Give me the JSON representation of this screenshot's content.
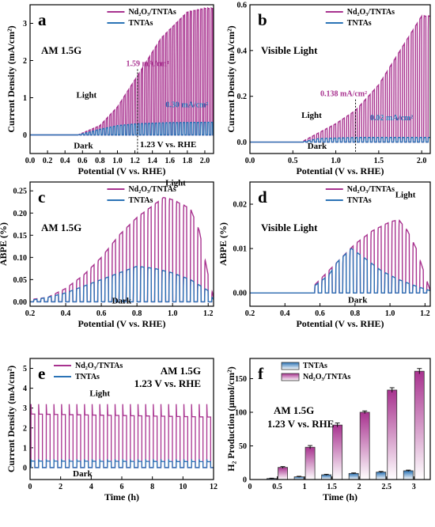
{
  "colors": {
    "nd2o3": "#A8328F",
    "tntas": "#2B73B6",
    "axis": "#000000"
  },
  "chart_data": [
    {
      "panel": "a",
      "type": "line",
      "xlabel": "Potential (V vs. RHE)",
      "ylabel": "Current Density (mA/cm²)",
      "xlim": [
        0,
        2.1
      ],
      "ylim": [
        -0.5,
        3.5
      ],
      "xticks": [
        "0.0",
        "0.2",
        "0.4",
        "0.6",
        "0.8",
        "1.0",
        "1.2",
        "1.4",
        "1.6",
        "1.8",
        "2.0"
      ],
      "yticks": [
        "0",
        "1",
        "2",
        "3"
      ],
      "condition": "AM 1.5G",
      "legend": [
        "Nd₂O₃/TNTAs",
        "TNTAs"
      ],
      "chop": {
        "start": 0.05,
        "period": 0.04,
        "onset": 0.55,
        "exp": 2.0
      },
      "series": [
        {
          "name": "Nd₂O₃/TNTAs",
          "color": "nd2o3",
          "envelope": [
            [
              0,
              0
            ],
            [
              0.55,
              0
            ],
            [
              0.8,
              0.25
            ],
            [
              1.0,
              0.75
            ],
            [
              1.23,
              1.59
            ],
            [
              1.5,
              2.6
            ],
            [
              1.8,
              3.3
            ],
            [
              2.0,
              3.4
            ],
            [
              2.1,
              3.4
            ]
          ]
        },
        {
          "name": "TNTAs",
          "color": "tntas",
          "envelope": [
            [
              0,
              0
            ],
            [
              0.55,
              0
            ],
            [
              0.8,
              0.15
            ],
            [
              1.0,
              0.25
            ],
            [
              1.23,
              0.3
            ],
            [
              1.6,
              0.33
            ],
            [
              2.1,
              0.34
            ]
          ]
        }
      ],
      "vline": {
        "x": 1.23,
        "label": "1.23 V vs. RHE"
      },
      "annotations": [
        {
          "text": "1.59 mA/cm²",
          "color": "nd2o3",
          "x": 1.1,
          "y": 1.85
        },
        {
          "text": "0.30 mA/cm²",
          "color": "tntas",
          "x": 1.55,
          "y": 0.75
        },
        {
          "text": "Light",
          "color": "axis",
          "x": 0.53,
          "y": 1.0
        },
        {
          "text": "Dark",
          "color": "axis",
          "x": 0.5,
          "y": -0.36
        }
      ]
    },
    {
      "panel": "b",
      "type": "line",
      "xlabel": "Potential (V vs. RHE)",
      "ylabel": "Current Density (mA/cm²)",
      "xlim": [
        0,
        2.1
      ],
      "ylim": [
        -0.05,
        0.6
      ],
      "xticks": [
        "0.0",
        "0.5",
        "1.0",
        "1.5",
        "2.0"
      ],
      "yticks": [
        "0.0",
        "0.2",
        "0.4",
        "0.6"
      ],
      "condition": "Visible Light",
      "legend": [
        "Nd₂O₃/TNTAs",
        "TNTAs"
      ],
      "chop": {
        "start": 0.55,
        "period": 0.05,
        "onset": 0.6,
        "exp": 2.0
      },
      "series": [
        {
          "name": "Nd₂O₃/TNTAs",
          "color": "nd2o3",
          "envelope": [
            [
              0,
              0
            ],
            [
              0.6,
              0
            ],
            [
              0.8,
              0.04
            ],
            [
              1.0,
              0.08
            ],
            [
              1.23,
              0.138
            ],
            [
              1.5,
              0.25
            ],
            [
              1.8,
              0.43
            ],
            [
              2.0,
              0.55
            ],
            [
              2.1,
              0.55
            ]
          ]
        },
        {
          "name": "TNTAs",
          "color": "tntas",
          "envelope": [
            [
              0,
              0
            ],
            [
              0.6,
              0
            ],
            [
              0.8,
              0.015
            ],
            [
              1.23,
              0.02
            ],
            [
              2.1,
              0.02
            ]
          ]
        }
      ],
      "vline": {
        "x": 1.23,
        "label": ""
      },
      "annotations": [
        {
          "text": "0.138 mA/cm²",
          "color": "nd2o3",
          "x": 0.82,
          "y": 0.2
        },
        {
          "text": "0.02 mA/cm²",
          "color": "tntas",
          "x": 1.4,
          "y": 0.095
        },
        {
          "text": "Light",
          "color": "axis",
          "x": 0.6,
          "y": 0.105
        },
        {
          "text": "Dark",
          "color": "axis",
          "x": 0.67,
          "y": -0.03
        }
      ]
    },
    {
      "panel": "c",
      "type": "line",
      "xlabel": "Potential (V vs. RHE)",
      "ylabel": "ABPE (%)",
      "xlim": [
        0.2,
        1.23
      ],
      "ylim": [
        -0.01,
        0.27
      ],
      "xticks": [
        "0.2",
        "0.4",
        "0.6",
        "0.8",
        "1.0",
        "1.2"
      ],
      "yticks": [
        "0.00",
        "0.05",
        "0.10",
        "0.15",
        "0.20",
        "0.25"
      ],
      "condition": "AM 1.5G",
      "legend": [
        "Nd₂O₃/TNTAs",
        "TNTAs"
      ],
      "chop": {
        "start": 0.2,
        "period": 0.04,
        "onset": 0.2,
        "exp": 1.5
      },
      "series": [
        {
          "name": "Nd₂O₃/TNTAs",
          "color": "nd2o3",
          "envelope": [
            [
              0.2,
              0.005
            ],
            [
              0.3,
              0.01
            ],
            [
              0.4,
              0.03
            ],
            [
              0.5,
              0.06
            ],
            [
              0.6,
              0.1
            ],
            [
              0.7,
              0.15
            ],
            [
              0.8,
              0.19
            ],
            [
              0.9,
              0.22
            ],
            [
              0.95,
              0.235
            ],
            [
              1.0,
              0.23
            ],
            [
              1.1,
              0.21
            ],
            [
              1.15,
              0.16
            ],
            [
              1.2,
              0.06
            ],
            [
              1.23,
              0.01
            ]
          ]
        },
        {
          "name": "TNTAs",
          "color": "tntas",
          "envelope": [
            [
              0.2,
              0.003
            ],
            [
              0.3,
              0.01
            ],
            [
              0.4,
              0.02
            ],
            [
              0.5,
              0.035
            ],
            [
              0.6,
              0.05
            ],
            [
              0.7,
              0.065
            ],
            [
              0.8,
              0.08
            ],
            [
              0.9,
              0.075
            ],
            [
              1.0,
              0.065
            ],
            [
              1.1,
              0.05
            ],
            [
              1.2,
              0.025
            ],
            [
              1.23,
              0.005
            ]
          ]
        }
      ],
      "annotations": [
        {
          "text": "Light",
          "color": "axis",
          "x": 0.96,
          "y": 0.262
        },
        {
          "text": "Dark",
          "color": "axis",
          "x": 0.66,
          "y": -0.004
        }
      ]
    },
    {
      "panel": "d",
      "type": "line",
      "xlabel": "Potential (V vs. RHE)",
      "ylabel": "ABPE (%)",
      "xlim": [
        0.2,
        1.23
      ],
      "ylim": [
        -0.003,
        0.025
      ],
      "xticks": [
        "0.2",
        "0.4",
        "0.6",
        "0.8",
        "1.0",
        "1.2"
      ],
      "yticks": [
        "0.00",
        "0.01",
        "0.02"
      ],
      "condition": "Visible Light",
      "legend": [
        "Nd₂O₃/TNTAs",
        "TNTAs"
      ],
      "chop": {
        "start": 0.55,
        "period": 0.04,
        "onset": 0.55,
        "exp": 1.5
      },
      "series": [
        {
          "name": "Nd₂O₃/TNTAs",
          "color": "nd2o3",
          "envelope": [
            [
              0.55,
              0.001
            ],
            [
              0.6,
              0.003
            ],
            [
              0.7,
              0.007
            ],
            [
              0.8,
              0.011
            ],
            [
              0.9,
              0.014
            ],
            [
              1.0,
              0.016
            ],
            [
              1.05,
              0.0165
            ],
            [
              1.1,
              0.014
            ],
            [
              1.15,
              0.01
            ],
            [
              1.2,
              0.004
            ],
            [
              1.23,
              0.0005
            ]
          ]
        },
        {
          "name": "TNTAs",
          "color": "tntas",
          "envelope": [
            [
              0.55,
              0.001
            ],
            [
              0.65,
              0.004
            ],
            [
              0.7,
              0.007
            ],
            [
              0.78,
              0.01
            ],
            [
              0.85,
              0.008
            ],
            [
              0.95,
              0.005
            ],
            [
              1.05,
              0.003
            ],
            [
              1.15,
              0.0015
            ],
            [
              1.23,
              0.0005
            ]
          ]
        }
      ],
      "annotations": [
        {
          "text": "Light",
          "color": "axis",
          "x": 1.03,
          "y": 0.0215
        },
        {
          "text": "Dark",
          "color": "axis",
          "x": 0.76,
          "y": -0.0022
        }
      ]
    },
    {
      "panel": "e",
      "type": "line",
      "xlabel": "Time (h)",
      "ylabel": "Current Density (mA/cm²)",
      "xlim": [
        0,
        12
      ],
      "ylim": [
        -0.6,
        5.5
      ],
      "xticks": [
        "0",
        "2",
        "4",
        "6",
        "8",
        "10",
        "12"
      ],
      "yticks": [
        "0",
        "1",
        "2",
        "3",
        "4",
        "5"
      ],
      "condition": "AM 1.5G",
      "condition2": "1.23 V vs. RHE",
      "legend": [
        "Nd₂O₃/TNTAs",
        "TNTAs"
      ],
      "cycles": 24,
      "series": [
        {
          "name": "Nd₂O₃/TNTAs",
          "color": "nd2o3",
          "spike": 3.2,
          "steady": 2.7,
          "end": 2.55
        },
        {
          "name": "TNTAs",
          "color": "tntas",
          "spike": 0.42,
          "steady": 0.33,
          "end": 0.3
        }
      ],
      "annotations": [
        {
          "text": "Light",
          "color": "axis",
          "x": 3.9,
          "y": 3.6
        },
        {
          "text": "Dark",
          "color": "axis",
          "x": 2.8,
          "y": -0.45
        }
      ]
    },
    {
      "panel": "f",
      "type": "bar",
      "xlabel": "Time (h)",
      "ylabel": "H₂ Production (μmol/cm²)",
      "xlim": [
        0,
        3.3
      ],
      "ylim": [
        0,
        180
      ],
      "categories": [
        "0.5",
        "1",
        "1.5",
        "2",
        "2.5",
        "3"
      ],
      "xticks": [
        "0",
        "0.5",
        "1",
        "1.5",
        "2",
        "2.5",
        "3"
      ],
      "yticks": [
        "0",
        "50",
        "100",
        "150"
      ],
      "condition": "AM 1.5G",
      "condition2": "1.23 V vs. RHE",
      "legend": [
        "TNTAs",
        "Nd₂O₃/TNTAs"
      ],
      "series": [
        {
          "name": "TNTAs",
          "color": "tntas",
          "values": [
            1.5,
            4,
            7,
            9,
            11,
            13
          ],
          "errors": [
            0.5,
            0.8,
            0.8,
            0.8,
            1,
            1
          ]
        },
        {
          "name": "Nd₂O₃/TNTAs",
          "color": "nd2o3",
          "values": [
            18,
            48,
            81,
            100,
            133,
            161
          ],
          "errors": [
            1.2,
            2.5,
            3,
            2,
            3.5,
            4
          ]
        }
      ]
    }
  ],
  "layout": {
    "panels": [
      {
        "l": 38,
        "t": 6,
        "w": 232,
        "h": 188
      },
      {
        "l": 316,
        "t": 6,
        "w": 228,
        "h": 188
      },
      {
        "l": 38,
        "t": 230,
        "w": 232,
        "h": 157
      },
      {
        "l": 316,
        "t": 230,
        "w": 228,
        "h": 157
      },
      {
        "l": 38,
        "t": 453,
        "w": 232,
        "h": 153
      },
      {
        "l": 316,
        "t": 453,
        "w": 228,
        "h": 153
      }
    ]
  }
}
